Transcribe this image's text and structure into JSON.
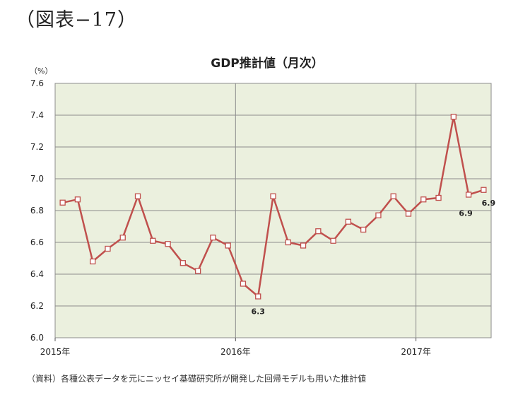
{
  "figure_label": "（図表−17）",
  "source_note": "（資料）各種公表データを元にニッセイ基礎研究所が開発した回帰モデルも用いた推計値",
  "colors": {
    "plot_bg": "#EBF0DE",
    "line": "#C0504D",
    "marker_fill": "#FFFFFF",
    "grid": "#8C8C8C"
  },
  "chart_data": {
    "type": "line",
    "title": "GDP推計値（月次）",
    "unit_label": "（%）",
    "ylim": [
      6.0,
      7.6
    ],
    "yticks": [
      "6.0",
      "6.2",
      "6.4",
      "6.6",
      "6.8",
      "7.0",
      "7.2",
      "7.4",
      "7.6"
    ],
    "x_tick_labels": [
      {
        "label": "2015年",
        "index": 0
      },
      {
        "label": "2016年",
        "index": 12
      },
      {
        "label": "2017年",
        "index": 24
      }
    ],
    "grid": true,
    "series": [
      {
        "values": [
          6.85,
          6.87,
          6.48,
          6.56,
          6.63,
          6.89,
          6.61,
          6.59,
          6.47,
          6.42,
          6.63,
          6.58,
          6.34,
          6.26,
          6.89,
          6.6,
          6.58,
          6.67,
          6.61,
          6.73,
          6.68,
          6.77,
          6.89,
          6.78,
          6.87,
          6.88,
          7.39,
          6.9,
          6.93
        ]
      }
    ],
    "annotations": [
      {
        "index": 13,
        "text": "6.3",
        "position": "below"
      },
      {
        "index": 27,
        "text": "6.9",
        "position": "below-left"
      },
      {
        "index": 28,
        "text": "6.9",
        "position": "below"
      }
    ]
  }
}
